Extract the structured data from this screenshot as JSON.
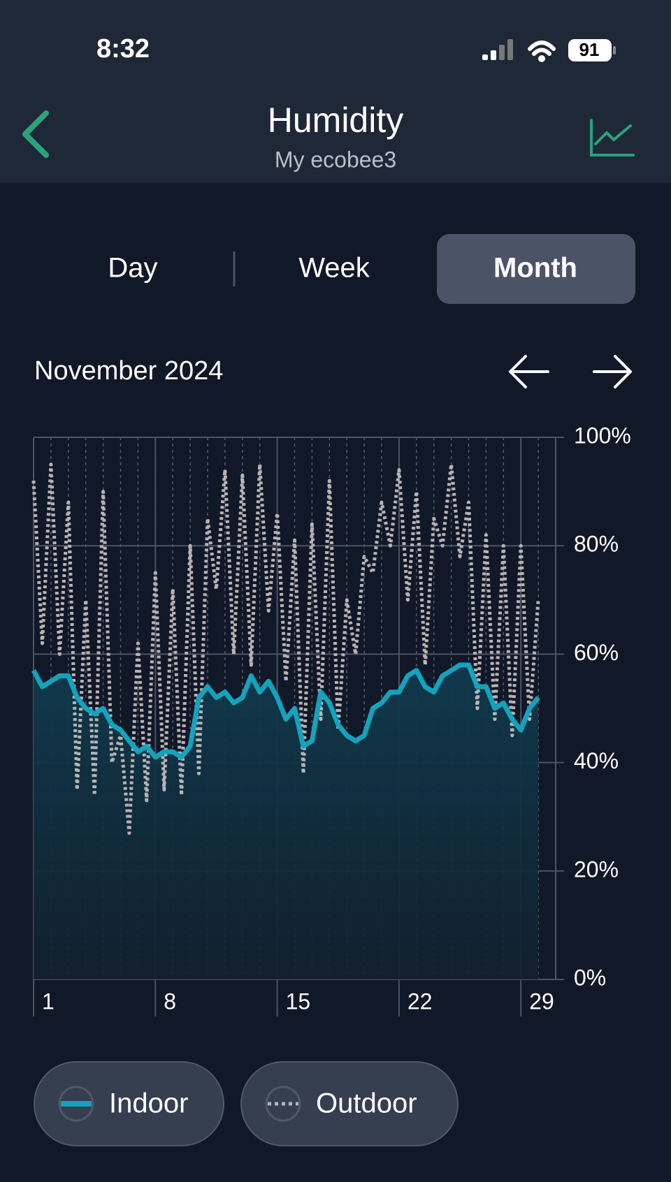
{
  "status_bar": {
    "time": "8:32",
    "battery": "91"
  },
  "header": {
    "title": "Humidity",
    "subtitle": "My ecobee3"
  },
  "tabs": [
    "Day",
    "Week",
    "Month"
  ],
  "period": "November 2024",
  "chart_data": {
    "type": "line",
    "x": [
      1,
      1.5,
      2,
      2.5,
      3,
      3.5,
      4,
      4.5,
      5,
      5.5,
      6,
      6.5,
      7,
      7.5,
      8,
      8.5,
      9,
      9.5,
      10,
      10.5,
      11,
      11.5,
      12,
      12.5,
      13,
      13.5,
      14,
      14.5,
      15,
      15.5,
      16,
      16.5,
      17,
      17.5,
      18,
      18.5,
      19,
      19.5,
      20,
      20.5,
      21,
      21.5,
      22,
      22.5,
      23,
      23.5,
      24,
      24.5,
      25,
      25.5,
      26,
      26.5,
      27,
      27.5,
      28,
      28.5,
      29,
      29.5,
      30
    ],
    "series": [
      {
        "name": "Indoor",
        "color": "#13a3bd",
        "fill": true,
        "values": [
          57,
          54,
          55,
          56,
          56,
          52,
          50,
          49,
          50,
          47,
          46,
          44,
          42,
          43,
          41,
          42,
          42,
          41,
          43,
          52,
          54,
          52,
          53,
          51,
          52,
          56,
          53,
          55,
          52,
          48,
          50,
          43,
          44,
          53,
          51,
          47,
          45,
          44,
          45,
          50,
          51,
          53,
          53,
          56,
          57,
          54,
          53,
          56,
          57,
          58,
          58,
          54,
          54,
          50,
          51,
          48,
          46,
          50,
          52
        ]
      },
      {
        "name": "Outdoor",
        "color": "#b8b4b4",
        "dashed": true,
        "values": [
          92,
          62,
          95,
          60,
          88,
          35,
          70,
          34,
          90,
          40,
          45,
          27,
          62,
          33,
          75,
          35,
          72,
          34,
          80,
          38,
          85,
          72,
          94,
          60,
          93,
          58,
          95,
          68,
          86,
          55,
          81,
          38,
          84,
          48,
          92,
          46,
          70,
          60,
          78,
          75,
          88,
          80,
          94,
          70,
          90,
          58,
          85,
          80,
          95,
          78,
          88,
          50,
          82,
          48,
          80,
          45,
          80,
          48,
          70
        ]
      }
    ],
    "xlim": [
      1,
      31
    ],
    "xticks": [
      1,
      8,
      15,
      22,
      29
    ],
    "ylim": [
      0,
      100
    ],
    "yticks": [
      {
        "value": 0,
        "label": "0%"
      },
      {
        "value": 20,
        "label": "20%"
      },
      {
        "value": 40,
        "label": "40%"
      },
      {
        "value": 60,
        "label": "60%"
      },
      {
        "value": 80,
        "label": "80%"
      },
      {
        "value": 100,
        "label": "100%"
      }
    ],
    "grid": true
  }
}
